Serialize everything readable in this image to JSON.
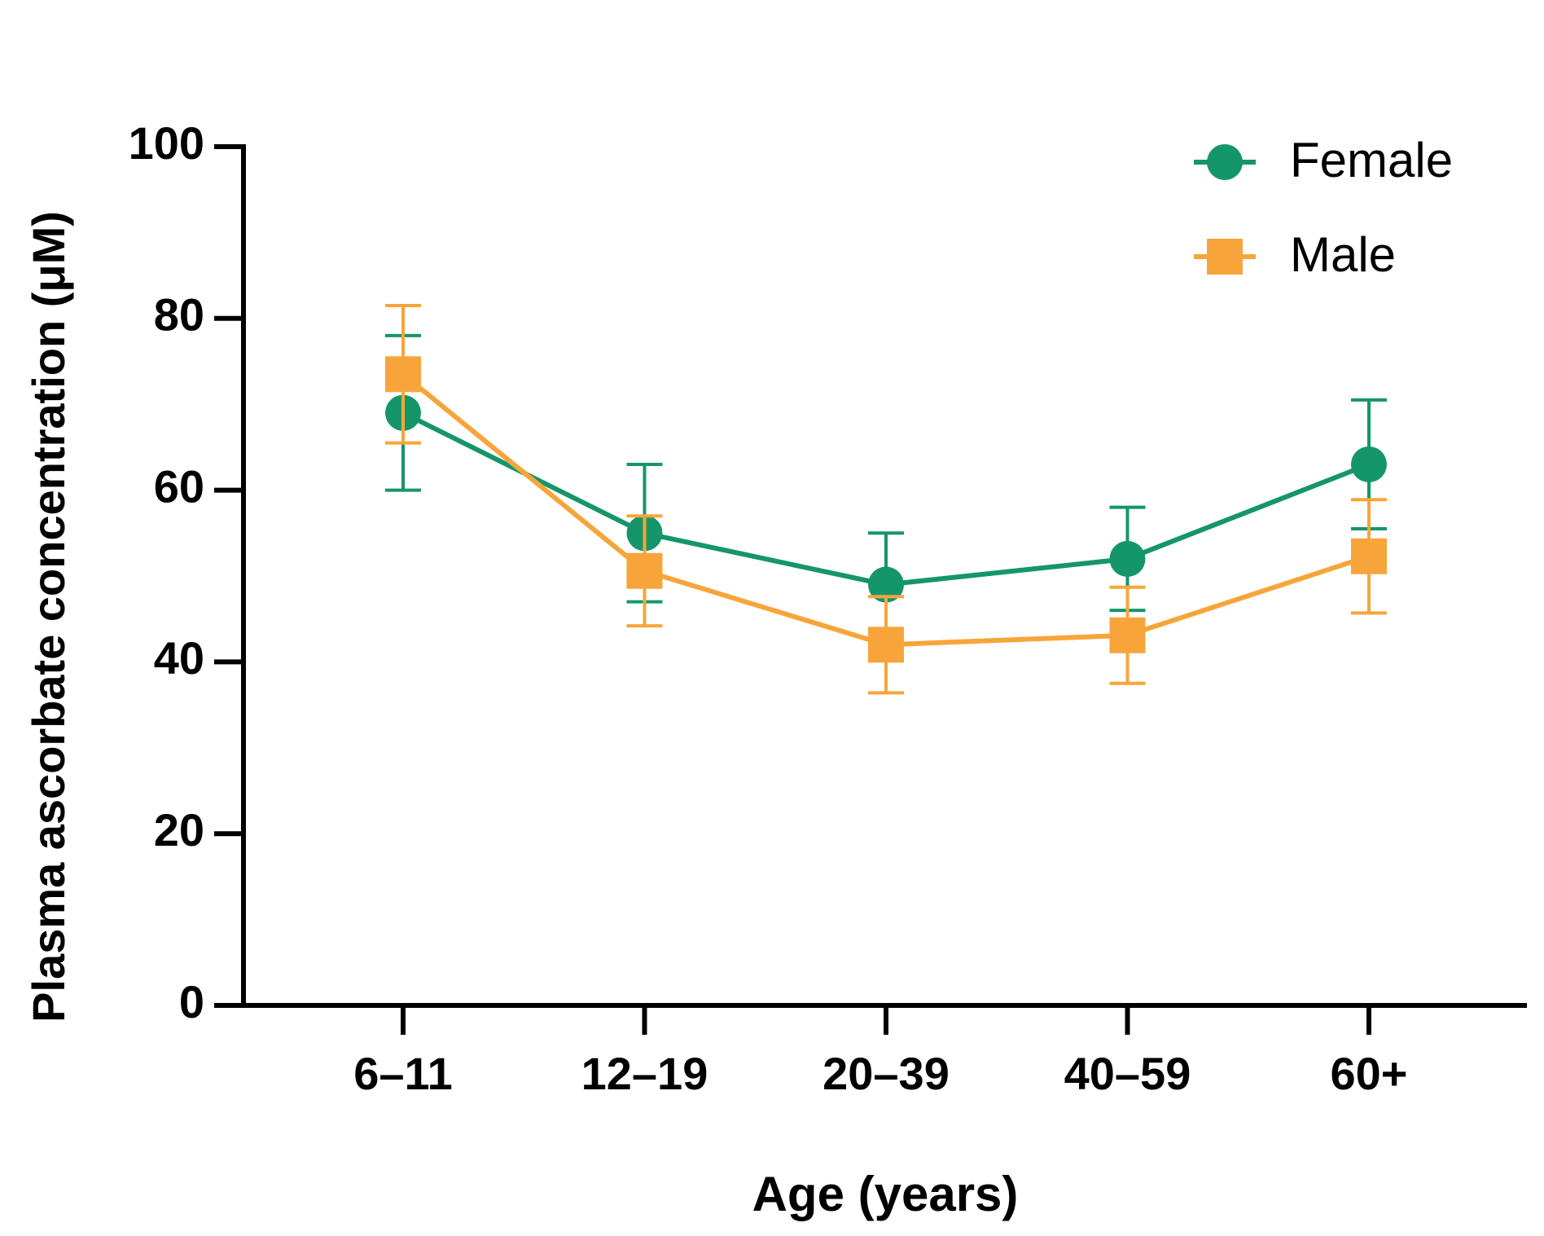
{
  "chart_data": {
    "type": "line",
    "x_label": "Age (years)",
    "y_label": "Plasma ascorbate concentration (μM)",
    "categories": [
      "6–11",
      "12–19",
      "20–39",
      "40–59",
      "60+"
    ],
    "series": [
      {
        "name": "Female",
        "color": "#15966a",
        "marker": "circle",
        "values": [
          69,
          55,
          49,
          52,
          63
        ],
        "errors": [
          9,
          8,
          6,
          6,
          7.5
        ]
      },
      {
        "name": "Male",
        "color": "#f7a53a",
        "marker": "square",
        "values": [
          73.5,
          50.6,
          42,
          43.1,
          52.3
        ],
        "errors": [
          8,
          6.4,
          5.6,
          5.6,
          6.6
        ]
      }
    ],
    "ylim": [
      0,
      100
    ],
    "yticks": [
      0,
      20,
      40,
      60,
      80,
      100
    ],
    "legend": "top-right"
  }
}
